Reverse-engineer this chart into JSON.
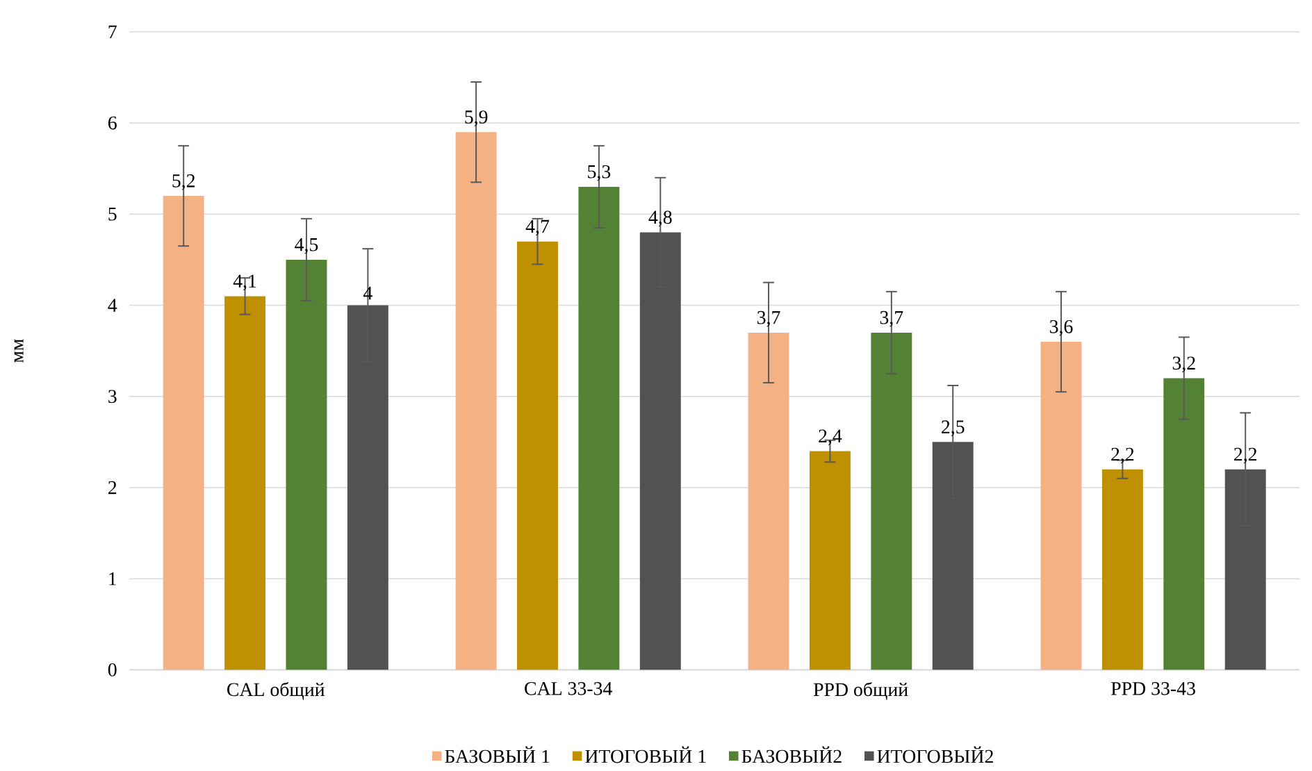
{
  "chart_data": {
    "type": "bar",
    "ylabel": "мм",
    "categories": [
      "CAL общий",
      "CAL 33-34",
      "PPD общий",
      "PPD 33-43"
    ],
    "series": [
      {
        "name": "БАЗОВЫЙ 1",
        "color": "#f4b183",
        "values": [
          5.2,
          5.9,
          3.7,
          3.6
        ],
        "value_labels": [
          "5,2",
          "5,9",
          "3,7",
          "3,6"
        ],
        "errors": [
          0.55,
          0.55,
          0.55,
          0.55
        ]
      },
      {
        "name": "ИТОГОВЫЙ 1",
        "color": "#bf9000",
        "values": [
          4.1,
          4.7,
          2.4,
          2.2
        ],
        "value_labels": [
          "4,1",
          "4,7",
          "2,4",
          "2,2"
        ],
        "errors": [
          0.2,
          0.25,
          0.12,
          0.1
        ]
      },
      {
        "name": "БАЗОВЫЙ2",
        "color": "#548235",
        "values": [
          4.5,
          5.3,
          3.7,
          3.2
        ],
        "value_labels": [
          "4,5",
          "5,3",
          "3,7",
          "3,2"
        ],
        "errors": [
          0.45,
          0.45,
          0.45,
          0.45
        ]
      },
      {
        "name": "ИТОГОВЫЙ2",
        "color": "#525252",
        "values": [
          4.0,
          4.8,
          2.5,
          2.2
        ],
        "value_labels": [
          "4",
          "4,8",
          "2,5",
          "2,2"
        ],
        "errors": [
          0.62,
          0.6,
          0.62,
          0.62
        ]
      }
    ],
    "ylim": [
      0,
      7
    ],
    "yticks": [
      0,
      1,
      2,
      3,
      4,
      5,
      6,
      7
    ],
    "grid": "y",
    "legend": "bottom"
  }
}
